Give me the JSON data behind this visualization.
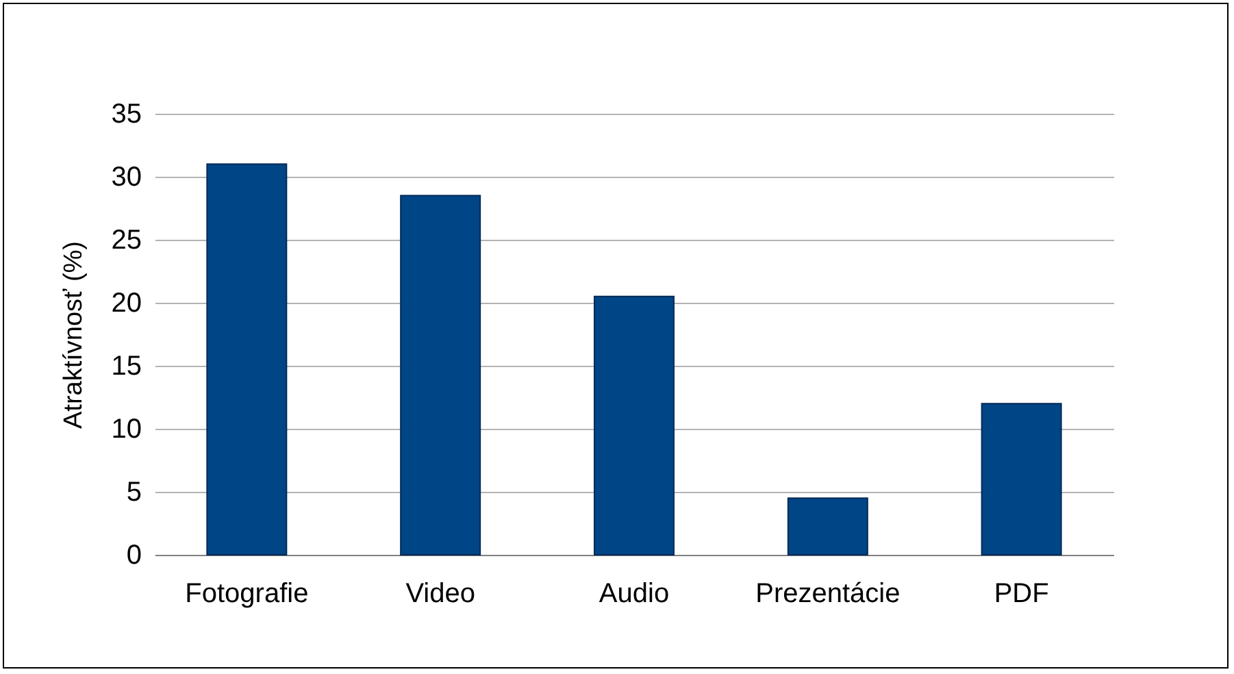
{
  "chart_data": {
    "type": "bar",
    "ylabel": "Atraktívnosť (%)",
    "categories": [
      "Fotografie",
      "Video",
      "Audio",
      "Prezentácie",
      "PDF"
    ],
    "values": [
      31,
      28.5,
      20.5,
      4.5,
      12
    ],
    "color": "#004586",
    "ylim": [
      0,
      35
    ],
    "yticks": [
      0,
      5,
      10,
      15,
      20,
      25,
      30,
      35
    ],
    "grid": "y"
  }
}
